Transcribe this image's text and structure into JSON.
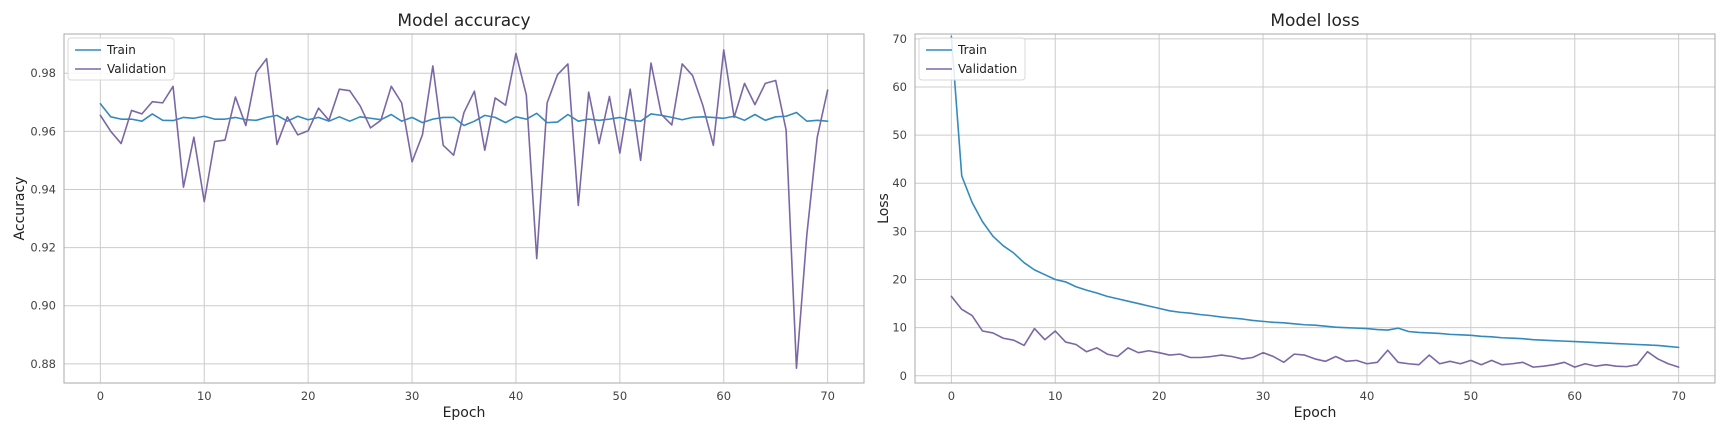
{
  "chart_data": [
    {
      "type": "line",
      "title": "Model accuracy",
      "xlabel": "Epoch",
      "ylabel": "Accuracy",
      "xlim": [
        -3.5,
        73.5
      ],
      "ylim": [
        0.8734,
        0.9935
      ],
      "xticks": [
        0,
        10,
        20,
        30,
        40,
        50,
        60,
        70
      ],
      "yticks": [
        0.88,
        0.9,
        0.92,
        0.94,
        0.96,
        0.98
      ],
      "ytick_labels": [
        "0.88",
        "0.90",
        "0.92",
        "0.94",
        "0.96",
        "0.98"
      ],
      "grid": true,
      "legend": "top-left",
      "x": [
        0,
        1,
        2,
        3,
        4,
        5,
        6,
        7,
        8,
        9,
        10,
        11,
        12,
        13,
        14,
        15,
        16,
        17,
        18,
        19,
        20,
        21,
        22,
        23,
        24,
        25,
        26,
        27,
        28,
        29,
        30,
        31,
        32,
        33,
        34,
        35,
        36,
        37,
        38,
        39,
        40,
        41,
        42,
        43,
        44,
        45,
        46,
        47,
        48,
        49,
        50,
        51,
        52,
        53,
        54,
        55,
        56,
        57,
        58,
        59,
        60,
        61,
        62,
        63,
        64,
        65,
        66,
        67,
        68,
        69,
        70
      ],
      "series": [
        {
          "name": "Train",
          "color": "#348abd",
          "values": [
            0.9695,
            0.965,
            0.9642,
            0.9642,
            0.9635,
            0.966,
            0.9638,
            0.9637,
            0.9648,
            0.9645,
            0.9652,
            0.9642,
            0.9642,
            0.9648,
            0.964,
            0.9638,
            0.9648,
            0.9655,
            0.9635,
            0.9652,
            0.964,
            0.9648,
            0.9635,
            0.965,
            0.9635,
            0.965,
            0.9645,
            0.964,
            0.9658,
            0.9635,
            0.9648,
            0.963,
            0.9642,
            0.9648,
            0.9648,
            0.962,
            0.9635,
            0.9655,
            0.9648,
            0.963,
            0.965,
            0.9642,
            0.9662,
            0.963,
            0.9632,
            0.9658,
            0.9635,
            0.9642,
            0.9638,
            0.9642,
            0.9648,
            0.9638,
            0.9635,
            0.966,
            0.9655,
            0.9648,
            0.964,
            0.9648,
            0.965,
            0.9648,
            0.9645,
            0.9652,
            0.9638,
            0.9658,
            0.9638,
            0.965,
            0.9652,
            0.9665,
            0.9635,
            0.9638,
            0.9635
          ]
        },
        {
          "name": "Validation",
          "color": "#7a68a6",
          "values": [
            0.9655,
            0.96,
            0.9558,
            0.9672,
            0.966,
            0.9702,
            0.9698,
            0.9755,
            0.9408,
            0.958,
            0.9358,
            0.9565,
            0.957,
            0.9718,
            0.962,
            0.9802,
            0.985,
            0.9555,
            0.965,
            0.9588,
            0.9602,
            0.968,
            0.9638,
            0.9745,
            0.974,
            0.9688,
            0.9612,
            0.9638,
            0.9755,
            0.9698,
            0.9495,
            0.9588,
            0.9825,
            0.9552,
            0.9518,
            0.9665,
            0.9738,
            0.9535,
            0.9715,
            0.969,
            0.9868,
            0.9725,
            0.9162,
            0.9698,
            0.9795,
            0.9832,
            0.9345,
            0.9735,
            0.9558,
            0.972,
            0.9525,
            0.9745,
            0.95,
            0.9835,
            0.9658,
            0.9622,
            0.9832,
            0.9792,
            0.9688,
            0.9552,
            0.988,
            0.9648,
            0.9765,
            0.9692,
            0.9765,
            0.9775,
            0.9605,
            0.8785,
            0.9245,
            0.958,
            0.9742
          ]
        }
      ]
    },
    {
      "type": "line",
      "title": "Model loss",
      "xlabel": "Epoch",
      "ylabel": "Loss",
      "xlim": [
        -3.5,
        73.5
      ],
      "ylim": [
        -1.5,
        71.0
      ],
      "xticks": [
        0,
        10,
        20,
        30,
        40,
        50,
        60,
        70
      ],
      "yticks": [
        0,
        10,
        20,
        30,
        40,
        50,
        60,
        70
      ],
      "ytick_labels": [
        "0",
        "10",
        "20",
        "30",
        "40",
        "50",
        "60",
        "70"
      ],
      "grid": true,
      "legend": "top-left",
      "x": [
        0,
        1,
        2,
        3,
        4,
        5,
        6,
        7,
        8,
        9,
        10,
        11,
        12,
        13,
        14,
        15,
        16,
        17,
        18,
        19,
        20,
        21,
        22,
        23,
        24,
        25,
        26,
        27,
        28,
        29,
        30,
        31,
        32,
        33,
        34,
        35,
        36,
        37,
        38,
        39,
        40,
        41,
        42,
        43,
        44,
        45,
        46,
        47,
        48,
        49,
        50,
        51,
        52,
        53,
        54,
        55,
        56,
        57,
        58,
        59,
        60,
        61,
        62,
        63,
        64,
        65,
        66,
        67,
        68,
        69,
        70
      ],
      "series": [
        {
          "name": "Train",
          "color": "#348abd",
          "values": [
            70.5,
            41.5,
            36.0,
            32.0,
            29.0,
            27.0,
            25.5,
            23.5,
            22.0,
            21.0,
            20.0,
            19.5,
            18.5,
            17.8,
            17.2,
            16.5,
            16.0,
            15.5,
            15.0,
            14.5,
            14.0,
            13.5,
            13.2,
            13.0,
            12.7,
            12.5,
            12.2,
            12.0,
            11.8,
            11.5,
            11.3,
            11.1,
            11.0,
            10.8,
            10.6,
            10.5,
            10.3,
            10.1,
            10.0,
            9.9,
            9.8,
            9.6,
            9.5,
            9.9,
            9.2,
            9.0,
            8.9,
            8.8,
            8.6,
            8.5,
            8.4,
            8.2,
            8.1,
            7.9,
            7.8,
            7.7,
            7.5,
            7.4,
            7.3,
            7.2,
            7.1,
            7.0,
            6.9,
            6.8,
            6.7,
            6.6,
            6.5,
            6.4,
            6.3,
            6.1,
            5.9
          ]
        },
        {
          "name": "Validation",
          "color": "#7a68a6",
          "values": [
            16.5,
            13.8,
            12.5,
            9.3,
            8.9,
            7.8,
            7.4,
            6.3,
            9.8,
            7.5,
            9.3,
            7.0,
            6.5,
            5.0,
            5.8,
            4.5,
            4.0,
            5.8,
            4.8,
            5.2,
            4.8,
            4.3,
            4.5,
            3.8,
            3.8,
            4.0,
            4.3,
            4.0,
            3.5,
            3.8,
            4.8,
            4.0,
            2.8,
            4.5,
            4.3,
            3.5,
            3.0,
            4.0,
            3.0,
            3.2,
            2.5,
            2.8,
            5.3,
            2.8,
            2.5,
            2.3,
            4.3,
            2.5,
            3.0,
            2.5,
            3.2,
            2.3,
            3.2,
            2.3,
            2.5,
            2.8,
            1.8,
            2.0,
            2.3,
            2.8,
            1.8,
            2.5,
            2.0,
            2.3,
            2.0,
            1.9,
            2.3,
            5.0,
            3.5,
            2.5,
            1.8
          ]
        }
      ]
    }
  ]
}
